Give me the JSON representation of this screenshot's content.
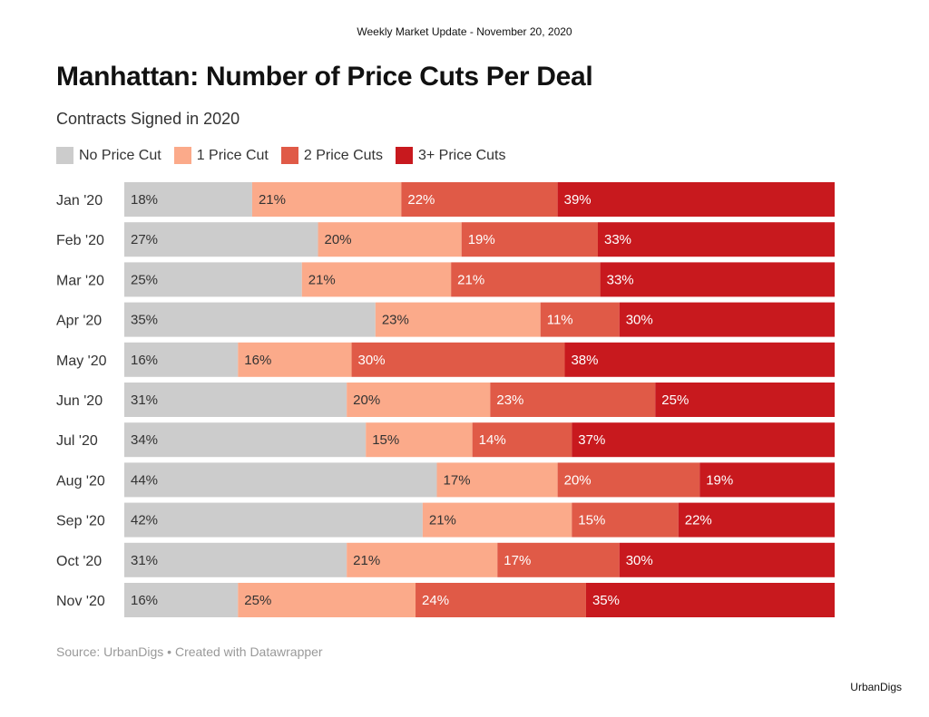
{
  "header": {
    "text": "Weekly Market Update - November 20, 2020"
  },
  "source": "Source: UrbanDigs • Created with Datawrapper",
  "footer": {
    "brand": "UrbanDigs"
  },
  "colors": {
    "no_price_cut": "#cccccc",
    "one_price_cut": "#fbaa8a",
    "two_price_cuts": "#e05a47",
    "three_plus_price_cuts": "#c8191e"
  },
  "chart_data": {
    "type": "bar",
    "orientation": "horizontal",
    "stacked": true,
    "title": "Manhattan: Number of Price Cuts Per Deal",
    "subtitle": "Contracts Signed in 2020",
    "legend_position": "top-left",
    "categories": [
      "Jan '20",
      "Feb '20",
      "Mar '20",
      "Apr '20",
      "May '20",
      "Jun '20",
      "Jul '20",
      "Aug '20",
      "Sep '20",
      "Oct '20",
      "Nov '20"
    ],
    "series": [
      {
        "name": "No Price Cut",
        "color": "#cccccc",
        "values": [
          18,
          27,
          25,
          35,
          16,
          31,
          34,
          44,
          42,
          31,
          16
        ]
      },
      {
        "name": "1 Price Cut",
        "color": "#fbaa8a",
        "values": [
          21,
          20,
          21,
          23,
          16,
          20,
          15,
          17,
          21,
          21,
          25
        ]
      },
      {
        "name": "2 Price Cuts",
        "color": "#e05a47",
        "values": [
          22,
          19,
          21,
          11,
          30,
          23,
          14,
          20,
          15,
          17,
          24
        ]
      },
      {
        "name": "3+ Price Cuts",
        "color": "#c8191e",
        "values": [
          39,
          33,
          33,
          30,
          38,
          25,
          37,
          19,
          22,
          30,
          35
        ]
      }
    ],
    "label_suffix": "%"
  }
}
